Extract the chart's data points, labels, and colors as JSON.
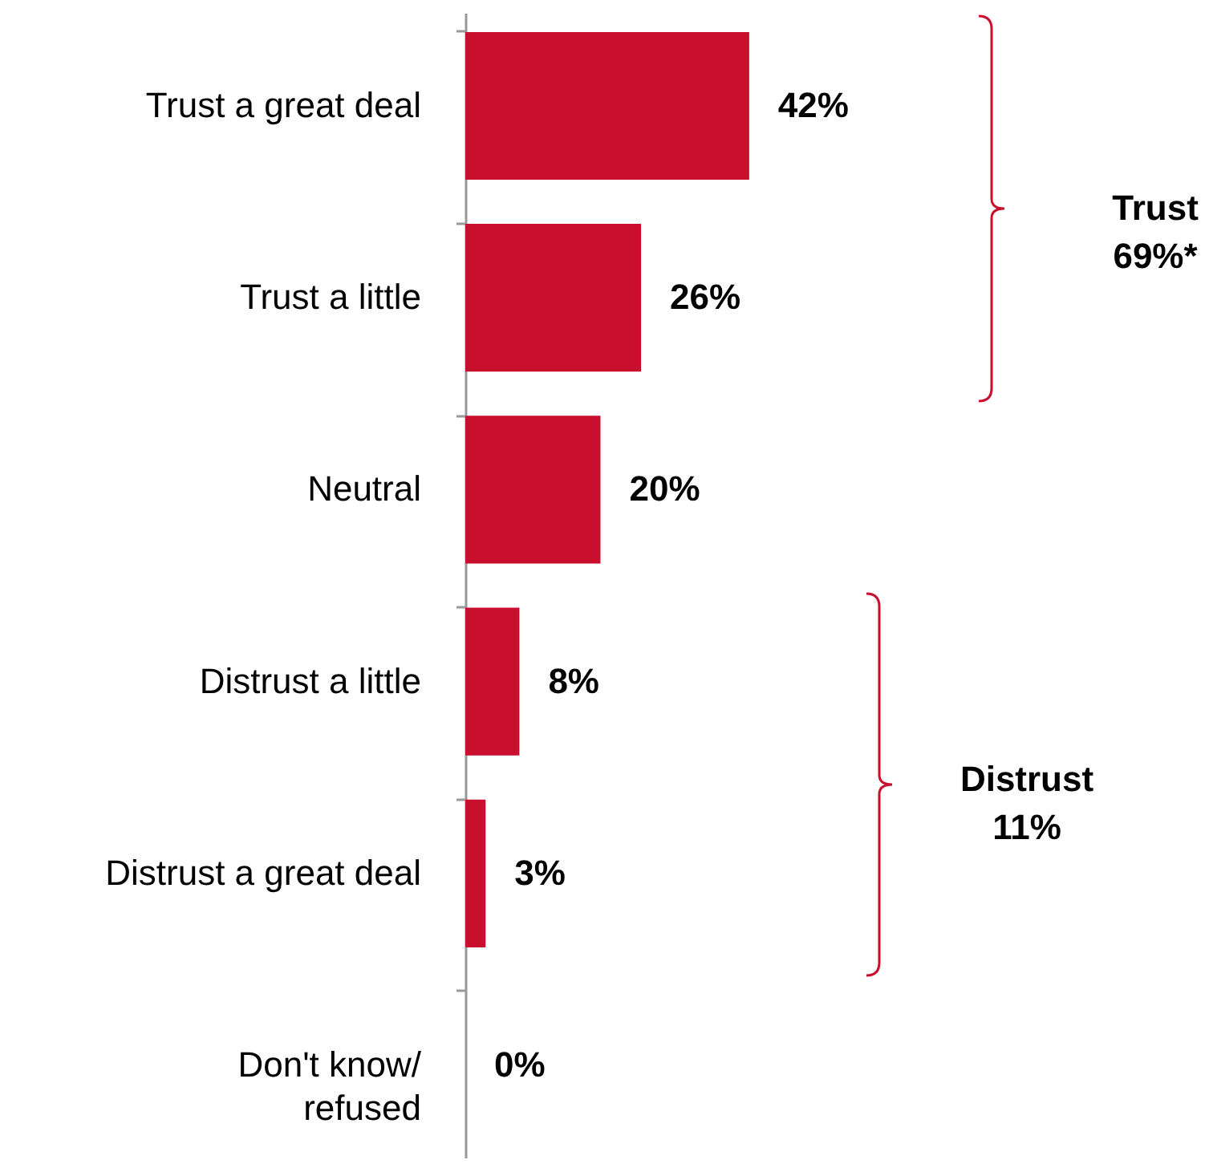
{
  "chart_data": {
    "type": "bar",
    "orientation": "horizontal",
    "categories": [
      "Trust a great deal",
      "Trust a little",
      "Neutral",
      "Distrust a little",
      "Distrust a great deal",
      "Don't know/ refused"
    ],
    "values": [
      42,
      26,
      20,
      8,
      3,
      0
    ],
    "value_labels": [
      "42%",
      "26%",
      "20%",
      "8%",
      "3%",
      "0%"
    ],
    "color": "#c8102e",
    "annotations": [
      "Trust 69%*",
      "Distrust 11%"
    ]
  }
}
